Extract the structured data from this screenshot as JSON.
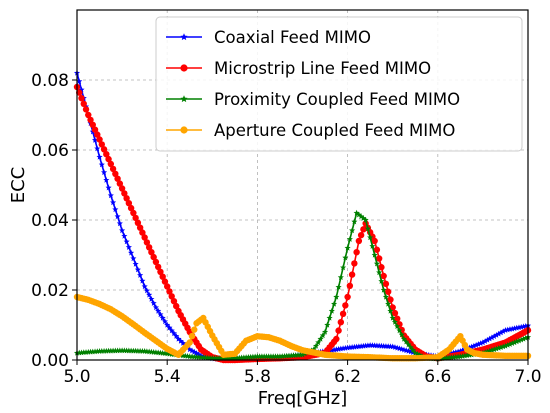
{
  "chart_data": {
    "type": "line",
    "xlabel": "Freq[GHz]",
    "ylabel": "ECC",
    "xlim": [
      5.0,
      7.0
    ],
    "ylim": [
      0.0,
      0.1
    ],
    "xticks": [
      "5.0",
      "5.4",
      "5.8",
      "6.2",
      "6.6",
      "7.0"
    ],
    "yticks": [
      "0.00",
      "0.02",
      "0.04",
      "0.06",
      "0.08"
    ],
    "xtick_values": [
      5.0,
      5.4,
      5.8,
      6.2,
      6.6,
      7.0
    ],
    "ytick_values": [
      0.0,
      0.02,
      0.04,
      0.06,
      0.08
    ],
    "grid": true,
    "legend_position": "top-right",
    "series": [
      {
        "name": "Coaxial Feed MIMO",
        "color": "#0000ff",
        "marker": "star",
        "x": [
          5.0,
          5.05,
          5.1,
          5.15,
          5.2,
          5.25,
          5.3,
          5.35,
          5.4,
          5.45,
          5.5,
          5.55,
          5.6,
          5.65,
          5.7,
          5.8,
          5.9,
          6.0,
          6.1,
          6.2,
          6.3,
          6.4,
          6.5,
          6.6,
          6.7,
          6.8,
          6.9,
          7.0
        ],
        "y": [
          0.082,
          0.07,
          0.058,
          0.047,
          0.037,
          0.029,
          0.021,
          0.015,
          0.01,
          0.006,
          0.003,
          0.0012,
          0.0004,
          0.0001,
          0.0,
          0.0003,
          0.0008,
          0.0015,
          0.0025,
          0.0035,
          0.0042,
          0.0038,
          0.002,
          0.001,
          0.0025,
          0.005,
          0.0085,
          0.0098
        ]
      },
      {
        "name": "Microstrip Line Feed MIMO",
        "color": "#ff0000",
        "marker": "circle",
        "x": [
          5.0,
          5.05,
          5.1,
          5.15,
          5.2,
          5.25,
          5.3,
          5.35,
          5.4,
          5.45,
          5.5,
          5.55,
          5.6,
          5.65,
          5.7,
          5.8,
          5.9,
          6.0,
          6.1,
          6.15,
          6.2,
          6.25,
          6.28,
          6.32,
          6.36,
          6.4,
          6.45,
          6.5,
          6.55,
          6.6,
          6.7,
          6.8,
          6.9,
          7.0
        ],
        "y": [
          0.078,
          0.07,
          0.063,
          0.056,
          0.049,
          0.042,
          0.035,
          0.028,
          0.021,
          0.014,
          0.008,
          0.003,
          0.0008,
          0.0,
          0.0,
          0.0003,
          0.0005,
          0.0008,
          0.002,
          0.006,
          0.018,
          0.034,
          0.039,
          0.034,
          0.024,
          0.015,
          0.007,
          0.003,
          0.001,
          0.0005,
          0.0015,
          0.003,
          0.005,
          0.0085
        ]
      },
      {
        "name": "Proximity Coupled Feed MIMO",
        "color": "#008000",
        "marker": "star",
        "x": [
          5.0,
          5.1,
          5.2,
          5.3,
          5.4,
          5.5,
          5.6,
          5.7,
          5.8,
          5.9,
          6.0,
          6.05,
          6.1,
          6.15,
          6.2,
          6.24,
          6.28,
          6.32,
          6.36,
          6.4,
          6.45,
          6.5,
          6.55,
          6.6,
          6.7,
          6.8,
          6.9,
          7.0
        ],
        "y": [
          0.002,
          0.0025,
          0.0027,
          0.0025,
          0.0018,
          0.001,
          0.0005,
          0.0005,
          0.001,
          0.001,
          0.0015,
          0.003,
          0.008,
          0.018,
          0.032,
          0.042,
          0.04,
          0.03,
          0.02,
          0.012,
          0.006,
          0.002,
          0.0005,
          0.0003,
          0.001,
          0.002,
          0.004,
          0.0065
        ]
      },
      {
        "name": "Aperture Coupled Feed MIMO",
        "color": "#ffa500",
        "marker": "circle",
        "x": [
          5.0,
          5.05,
          5.1,
          5.15,
          5.2,
          5.25,
          5.3,
          5.35,
          5.4,
          5.45,
          5.5,
          5.53,
          5.56,
          5.6,
          5.65,
          5.7,
          5.75,
          5.8,
          5.85,
          5.9,
          5.95,
          6.0,
          6.1,
          6.2,
          6.3,
          6.4,
          6.5,
          6.6,
          6.65,
          6.7,
          6.73,
          6.76,
          6.8,
          6.9,
          7.0
        ],
        "y": [
          0.018,
          0.0172,
          0.016,
          0.0145,
          0.0125,
          0.0102,
          0.0078,
          0.0055,
          0.0032,
          0.0015,
          0.005,
          0.0105,
          0.012,
          0.007,
          0.0015,
          0.0018,
          0.0055,
          0.0068,
          0.0065,
          0.0055,
          0.004,
          0.0028,
          0.0015,
          0.001,
          0.0008,
          0.0005,
          0.0005,
          0.0008,
          0.003,
          0.0068,
          0.003,
          0.002,
          0.0015,
          0.0012,
          0.0012
        ]
      }
    ]
  }
}
